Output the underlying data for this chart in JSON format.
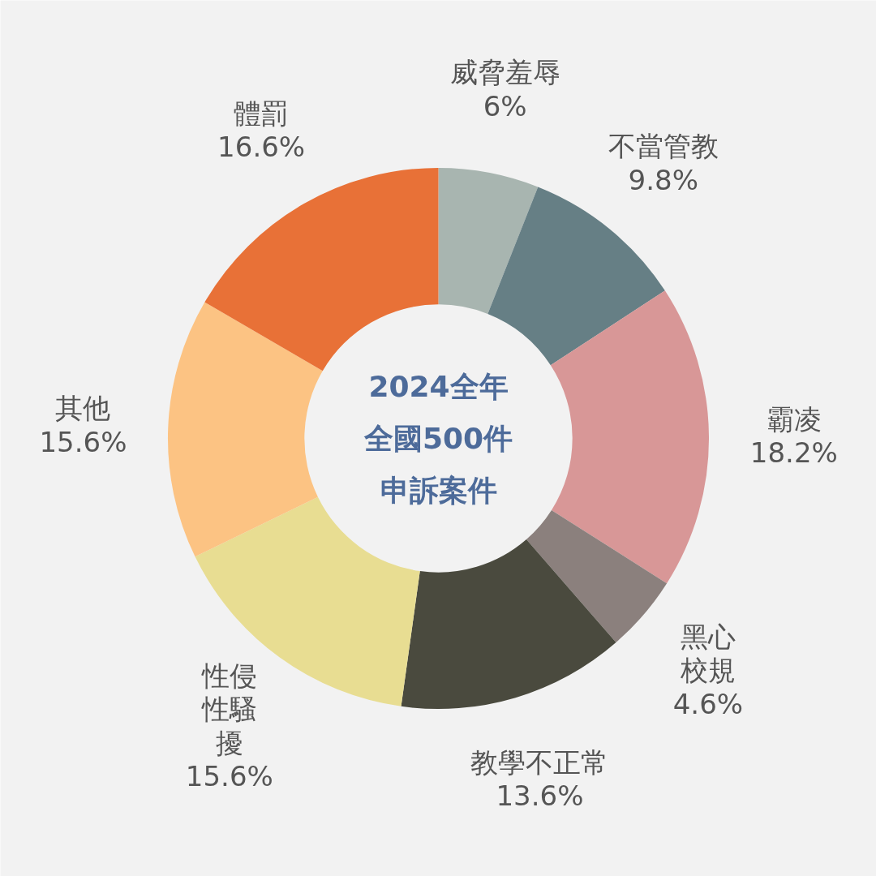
{
  "chart_data": {
    "type": "donut",
    "title": "2024全年全國500件申訴案件",
    "categories": [
      "威脅羞辱",
      "不當管教",
      "霸凌",
      "黑心校規",
      "教學不正常",
      "性侵性騷擾",
      "其他",
      "體罰"
    ],
    "values": [
      6,
      9.8,
      18.2,
      4.6,
      13.6,
      15.6,
      15.6,
      16.6
    ],
    "colors": [
      "#a8b5b0",
      "#667f85",
      "#d89797",
      "#8b807d",
      "#4a4a3e",
      "#e8dd92",
      "#fcc383",
      "#e87137"
    ],
    "value_labels": [
      "6%",
      "9.8%",
      "18.2%",
      "4.6%",
      "13.6%",
      "15.6%",
      "15.6%",
      "16.6%"
    ]
  }
}
